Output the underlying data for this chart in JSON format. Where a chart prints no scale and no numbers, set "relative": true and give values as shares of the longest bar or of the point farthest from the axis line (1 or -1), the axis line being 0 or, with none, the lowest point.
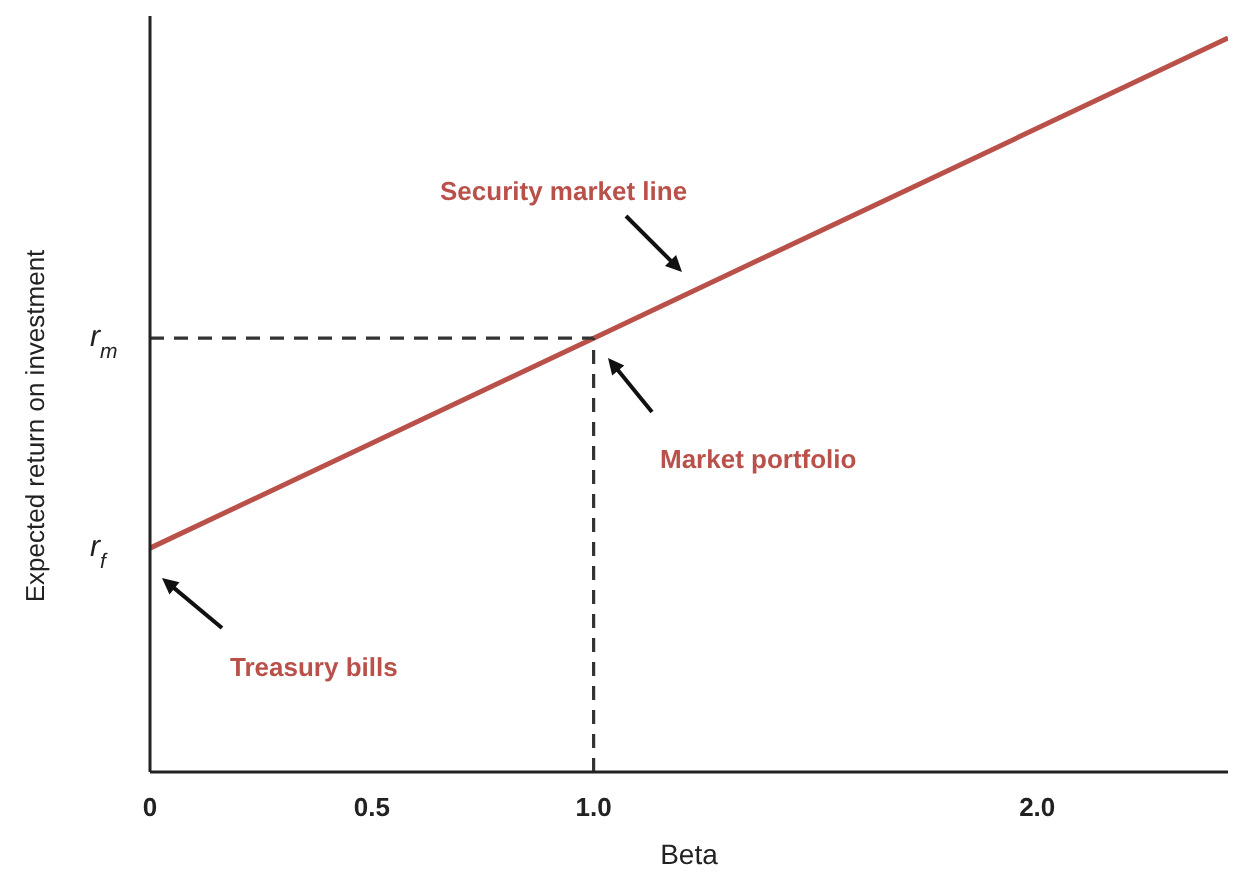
{
  "chart_data": {
    "type": "line",
    "relative": true,
    "xlabel": "Beta",
    "ylabel": "Expected return on investment",
    "xlim": [
      0,
      2.43
    ],
    "xticks": [
      0,
      0.5,
      {
        "value": 1,
        "label": "1.0"
      },
      {
        "value": 2,
        "label": "2.0"
      }
    ],
    "marker": "none",
    "series": [
      {
        "x": [
          0,
          1,
          2.43
        ],
        "values": [
          0.305,
          0.591,
          1
        ],
        "color": "#b9514a",
        "line_style": "solid"
      },
      {
        "x": [
          0,
          1
        ],
        "values": [
          0.591,
          0.591
        ],
        "color": "#333333",
        "line_style": "dashed"
      },
      {
        "x": [
          1,
          1
        ],
        "values": [
          0,
          0.591
        ],
        "color": "#333333",
        "line_style": "dashed"
      }
    ],
    "annotations": [
      {
        "text": "r$_{m}$",
        "x": 0,
        "y": 0.591
      },
      {
        "text": "r$_{f}$",
        "x": 0,
        "y": 0.305
      },
      "Security market line",
      "Market portfolio",
      "Treasury bills"
    ]
  }
}
